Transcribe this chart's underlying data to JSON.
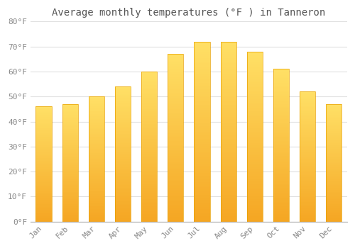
{
  "title": "Average monthly temperatures (°F ) in Tanneron",
  "months": [
    "Jan",
    "Feb",
    "Mar",
    "Apr",
    "May",
    "Jun",
    "Jul",
    "Aug",
    "Sep",
    "Oct",
    "Nov",
    "Dec"
  ],
  "values": [
    46,
    47,
    50,
    54,
    60,
    67,
    72,
    72,
    68,
    61,
    52,
    47
  ],
  "bar_color_bottom": "#F5A623",
  "bar_color_top": "#FFE066",
  "bar_color_mid": "#FFBF00",
  "ylim": [
    0,
    80
  ],
  "yticks": [
    0,
    10,
    20,
    30,
    40,
    50,
    60,
    70,
    80
  ],
  "ytick_labels": [
    "0°F",
    "10°F",
    "20°F",
    "30°F",
    "40°F",
    "50°F",
    "60°F",
    "70°F",
    "80°F"
  ],
  "background_color": "#FFFFFF",
  "grid_color": "#E0E0E0",
  "title_fontsize": 10,
  "tick_fontsize": 8,
  "tick_color": "#888888",
  "font_family": "monospace",
  "bar_width": 0.6
}
